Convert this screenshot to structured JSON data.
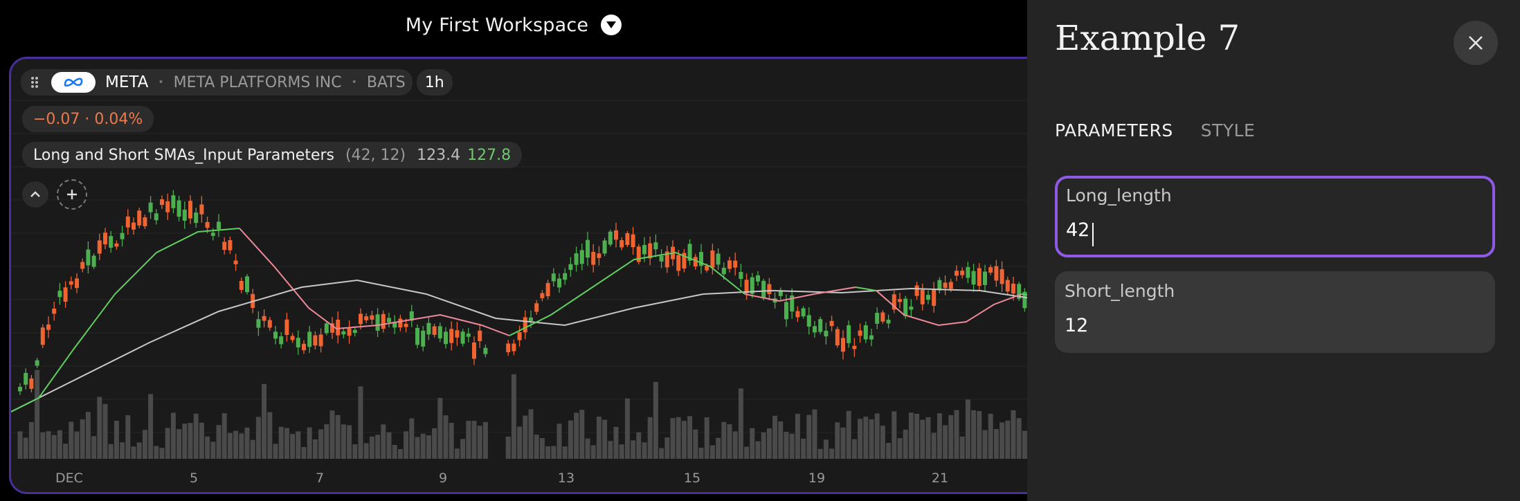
{
  "workspace": {
    "title": "My First Workspace"
  },
  "chart": {
    "symbol": "META",
    "company": "META PLATFORMS INC",
    "exchange": "BATS",
    "timeframe": "1h",
    "change_text": "−0.07 · 0.04%",
    "indicator": {
      "name": "Long and Short SMAs_Input Parameters",
      "params": "(42, 12)",
      "long_value": "123.4",
      "short_value": "127.8"
    },
    "x_axis_labels": [
      "DEC",
      "5",
      "7",
      "9",
      "13",
      "15",
      "19",
      "21"
    ],
    "colors": {
      "up": "#4caf50",
      "down": "#f06432",
      "long_sma": "#c8c8c8",
      "short_sma_up": "#5fcf5f",
      "short_sma_down": "#f08a9a",
      "volume": "#4a4a4a",
      "frame": "#4a2f9c"
    }
  },
  "panel": {
    "title": "Example 7",
    "tabs": [
      "PARAMETERS",
      "STYLE"
    ],
    "active_tab": "PARAMETERS",
    "fields": [
      {
        "label": "Long_length",
        "value": "42"
      },
      {
        "label": "Short_length",
        "value": "12"
      }
    ]
  },
  "icons": {
    "workspace_toggle": "chevron-down-icon",
    "drag": "drag-handle-icon",
    "logo": "meta-logo-icon",
    "collapse": "chevron-up-icon",
    "add": "plus-icon",
    "close": "close-icon"
  }
}
